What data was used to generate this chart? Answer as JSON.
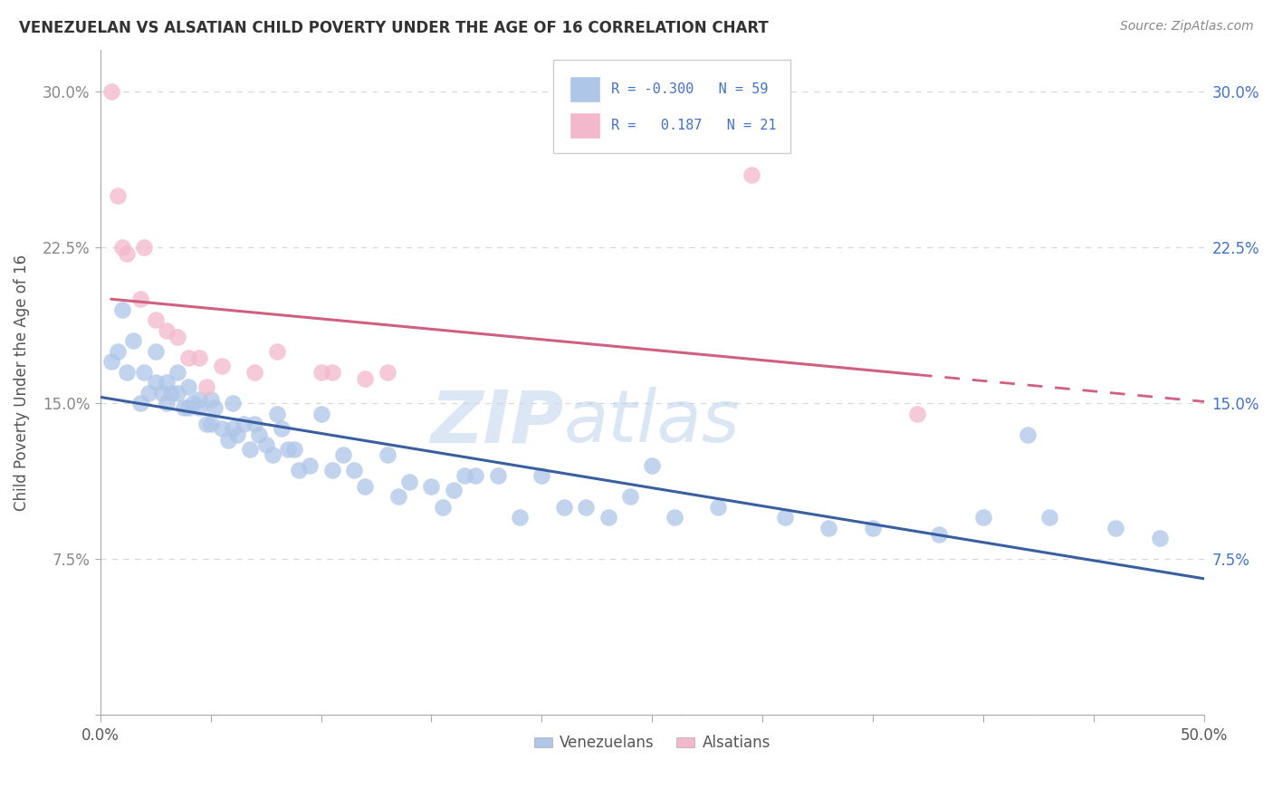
{
  "title": "VENEZUELAN VS ALSATIAN CHILD POVERTY UNDER THE AGE OF 16 CORRELATION CHART",
  "source": "Source: ZipAtlas.com",
  "ylabel": "Child Poverty Under the Age of 16",
  "xlim": [
    0.0,
    0.5
  ],
  "ylim": [
    0.0,
    0.32
  ],
  "xticks": [
    0.0,
    0.05,
    0.1,
    0.15,
    0.2,
    0.25,
    0.3,
    0.35,
    0.4,
    0.45,
    0.5
  ],
  "xtick_labels_major": {
    "0.0": "0.0%",
    "0.25": "",
    "0.50": "50.0%"
  },
  "yticks": [
    0.0,
    0.075,
    0.15,
    0.225,
    0.3
  ],
  "ytick_labels": [
    "",
    "7.5%",
    "15.0%",
    "22.5%",
    "30.0%"
  ],
  "venezuelan_color": "#aec6e8",
  "alsatian_color": "#f4b8cc",
  "venezuelan_line_color": "#3a5fa0",
  "alsatian_line_color": "#d06080",
  "venezuelan_R": -0.3,
  "venezuelan_N": 59,
  "alsatian_R": 0.187,
  "alsatian_N": 21,
  "watermark_zip": "ZIP",
  "watermark_atlas": "atlas",
  "venezuelan_x": [
    0.005,
    0.008,
    0.01,
    0.012,
    0.015,
    0.018,
    0.02,
    0.022,
    0.025,
    0.025,
    0.028,
    0.03,
    0.03,
    0.032,
    0.035,
    0.035,
    0.038,
    0.04,
    0.04,
    0.042,
    0.045,
    0.045,
    0.048,
    0.05,
    0.05,
    0.052,
    0.055,
    0.058,
    0.06,
    0.06,
    0.062,
    0.065,
    0.068,
    0.07,
    0.072,
    0.075,
    0.078,
    0.08,
    0.082,
    0.085,
    0.088,
    0.09,
    0.095,
    0.1,
    0.105,
    0.11,
    0.115,
    0.12,
    0.13,
    0.135,
    0.14,
    0.15,
    0.155,
    0.165,
    0.17,
    0.2,
    0.22,
    0.25,
    0.42
  ],
  "venezuelan_y": [
    0.17,
    0.175,
    0.195,
    0.165,
    0.18,
    0.15,
    0.165,
    0.155,
    0.16,
    0.175,
    0.155,
    0.16,
    0.15,
    0.155,
    0.155,
    0.165,
    0.148,
    0.158,
    0.148,
    0.15,
    0.152,
    0.148,
    0.14,
    0.14,
    0.152,
    0.148,
    0.138,
    0.132,
    0.138,
    0.15,
    0.135,
    0.14,
    0.128,
    0.14,
    0.135,
    0.13,
    0.125,
    0.145,
    0.138,
    0.128,
    0.128,
    0.118,
    0.12,
    0.145,
    0.118,
    0.125,
    0.118,
    0.11,
    0.125,
    0.105,
    0.112,
    0.11,
    0.1,
    0.115,
    0.115,
    0.115,
    0.1,
    0.12,
    0.135
  ],
  "venezuelan_x2": [
    0.16,
    0.18,
    0.19,
    0.21,
    0.23,
    0.24,
    0.26,
    0.28,
    0.31,
    0.33,
    0.35,
    0.38,
    0.4,
    0.43,
    0.46,
    0.48
  ],
  "venezuelan_y2": [
    0.108,
    0.115,
    0.095,
    0.1,
    0.095,
    0.105,
    0.095,
    0.1,
    0.095,
    0.09,
    0.09,
    0.087,
    0.095,
    0.095,
    0.09,
    0.085
  ],
  "alsatian_x": [
    0.005,
    0.008,
    0.01,
    0.012,
    0.018,
    0.02,
    0.025,
    0.03,
    0.035,
    0.04,
    0.045,
    0.048,
    0.055,
    0.07,
    0.08,
    0.1,
    0.105,
    0.12,
    0.13,
    0.295,
    0.37
  ],
  "alsatian_y": [
    0.3,
    0.25,
    0.225,
    0.222,
    0.2,
    0.225,
    0.19,
    0.185,
    0.182,
    0.172,
    0.172,
    0.158,
    0.168,
    0.165,
    0.175,
    0.165,
    0.165,
    0.162,
    0.165,
    0.26,
    0.145
  ]
}
